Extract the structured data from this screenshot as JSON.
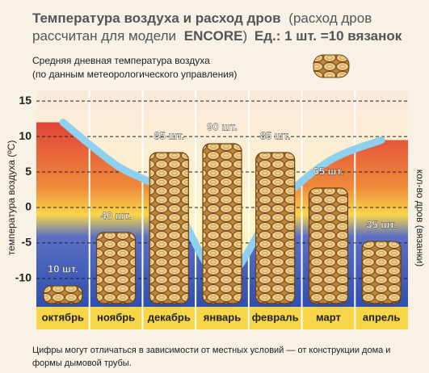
{
  "chart_data": {
    "type": "bar",
    "title": [
      "Температура воздуха и расход дров",
      "(расход дров",
      "рассчитан для модели",
      "ENCORE",
      ")",
      "Ед.: 1 шт. =10 вязанок"
    ],
    "subtitle": [
      "Средняя дневная температура воздуха",
      "(по данным метеорологического управления)"
    ],
    "y_label": "температура воздуха (ºC)",
    "y2_label": "кол-во дров (вязанки)",
    "categories": [
      "октябрь",
      "ноябрь",
      "декабрь",
      "январь",
      "февраль",
      "март",
      "апрель"
    ],
    "ylim": [
      -14,
      16.5
    ],
    "yticks": [
      15,
      10,
      5,
      0,
      -5,
      -10
    ],
    "grid": true,
    "temperature": {
      "color": "#8fd0ee",
      "values": [
        12,
        6,
        1.5,
        -10,
        0,
        6.5,
        9.5
      ]
    },
    "wood": {
      "color": "#e6bd74",
      "values": [
        10,
        40,
        85,
        90,
        85,
        65,
        35
      ],
      "value_labels": [
        "10 шт.",
        "40 шт.",
        "85 шт.",
        "90 шт.",
        "85 шт.",
        "65 шт.",
        "35 шт."
      ]
    },
    "note": [
      "Цифры могут отличаться в зависимости от местных условий — от конструкции дома и",
      "формы дымовой трубы."
    ]
  }
}
